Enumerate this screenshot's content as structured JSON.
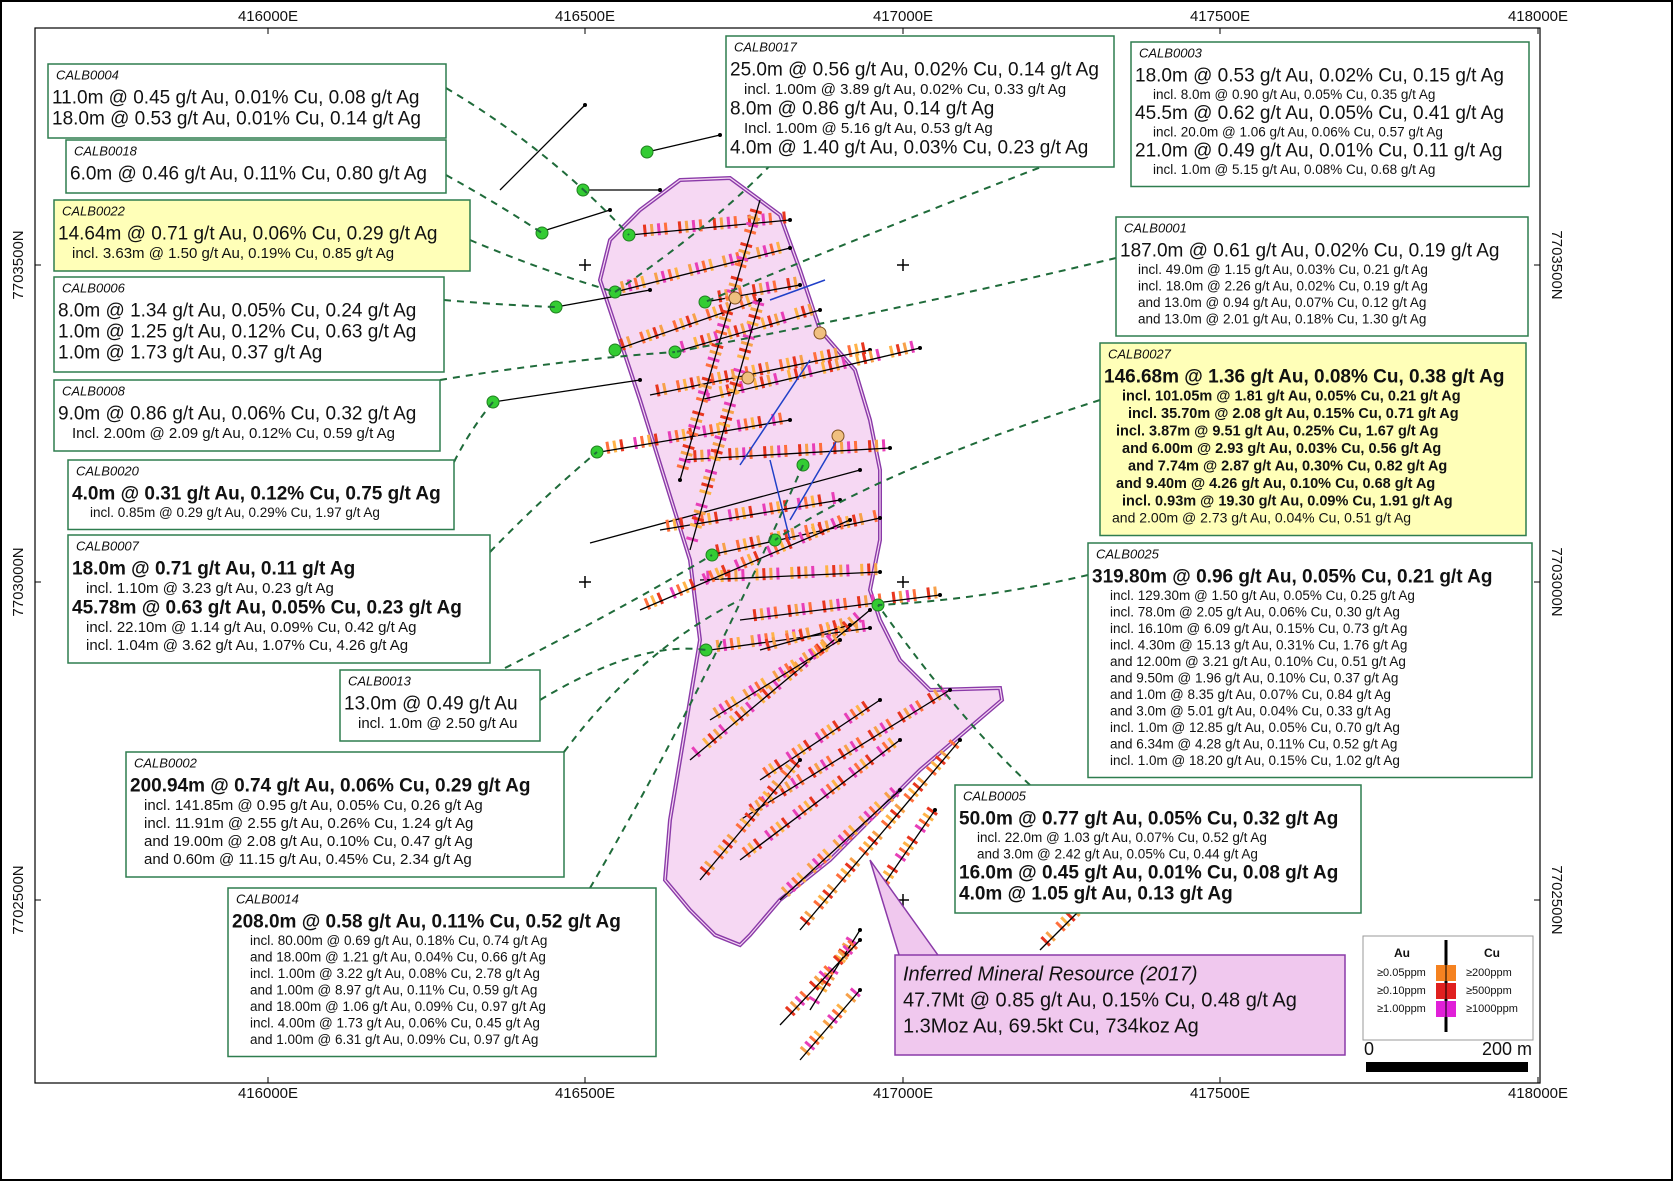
{
  "grid_labels": {
    "eastings_top": [
      "416000E",
      "416500E",
      "417000E",
      "417500E",
      "418000E"
    ],
    "eastings_bottom": [
      "416000E",
      "416500E",
      "417000E",
      "417500E",
      "418000E"
    ],
    "northings_left": [
      "7703500N",
      "7703000N",
      "7702500N"
    ],
    "northings_right": [
      "7703500N",
      "7703000N",
      "7702500N"
    ]
  },
  "callouts": [
    {
      "hole": "CALB0004",
      "lines": [
        "11.0m @ 0.45 g/t Au, 0.01% Cu, 0.08 g/t Ag",
        "18.0m @ 0.53 g/t Au, 0.01% Cu, 0.14 g/t Ag"
      ]
    },
    {
      "hole": "CALB0018",
      "lines": [
        "6.0m @ 0.46 g/t Au, 0.11% Cu, 0.80 g/t Ag"
      ]
    },
    {
      "hole": "CALB0022",
      "lines": [
        "14.64m @ 0.71 g/t Au, 0.06% Cu, 0.29 g/t Ag",
        "incl. 3.63m @ 1.50 g/t Au, 0.19% Cu, 0.85 g/t Ag"
      ]
    },
    {
      "hole": "CALB0006",
      "lines": [
        "8.0m @ 1.34 g/t Au, 0.05% Cu, 0.24 g/t Ag",
        "1.0m @ 1.25 g/t Au, 0.12% Cu, 0.63 g/t Ag",
        "1.0m @ 1.73 g/t Au, 0.37 g/t Ag"
      ]
    },
    {
      "hole": "CALB0008",
      "lines": [
        "9.0m @ 0.86 g/t Au, 0.06% Cu, 0.32 g/t Ag",
        "Incl. 2.00m @ 2.09 g/t Au, 0.12% Cu, 0.59 g/t Ag"
      ]
    },
    {
      "hole": "CALB0020",
      "lines": [
        "4.0m @ 0.31 g/t Au, 0.12% Cu, 0.75 g/t Ag",
        "incl. 0.85m @ 0.29 g/t Au, 0.29% Cu, 1.97 g/t Ag"
      ]
    },
    {
      "hole": "CALB0007",
      "lines": [
        "18.0m @ 0.71 g/t Au, 0.11 g/t Ag",
        "incl. 1.10m @ 3.23 g/t Au, 0.23 g/t Ag",
        "45.78m @ 0.63 g/t Au, 0.05% Cu, 0.23 g/t Ag",
        "incl. 22.10m @ 1.14 g/t Au, 0.09% Cu, 0.42 g/t Ag",
        "incl. 1.04m @ 3.62 g/t Au, 1.07% Cu, 4.26 g/t Ag"
      ]
    },
    {
      "hole": "CALB0013",
      "lines": [
        "13.0m @ 0.49 g/t Au",
        "incl. 1.0m @ 2.50 g/t Au"
      ]
    },
    {
      "hole": "CALB0002",
      "lines": [
        "200.94m @ 0.74 g/t Au, 0.06% Cu, 0.29 g/t Ag",
        "incl. 141.85m @ 0.95 g/t Au, 0.05% Cu, 0.26 g/t Ag",
        "incl. 11.91m @ 2.55 g/t Au, 0.26% Cu, 1.24 g/t Ag",
        "and 19.00m @ 2.08 g/t Au, 0.10% Cu, 0.47 g/t Ag",
        "and 0.60m @ 11.15 g/t Au, 0.45% Cu, 2.34 g/t Ag"
      ]
    },
    {
      "hole": "CALB0014",
      "lines": [
        "208.0m @ 0.58 g/t Au, 0.11% Cu, 0.52 g/t Ag",
        "incl. 80.00m @ 0.69 g/t Au, 0.18% Cu, 0.74 g/t Ag",
        "and 18.00m @ 1.21 g/t Au, 0.04% Cu, 0.66 g/t Ag",
        "incl. 1.00m @ 3.22 g/t Au, 0.08% Cu, 2.78 g/t Ag",
        "and 1.00m @ 8.97 g/t Au, 0.11% Cu, 0.59 g/t Ag",
        "and 18.00m @ 1.06 g/t Au, 0.09% Cu, 0.97 g/t Ag",
        "incl. 4.00m @ 1.73 g/t Au, 0.06% Cu, 0.45 g/t Ag",
        "and 1.00m @ 6.31 g/t Au, 0.09% Cu, 0.97 g/t Ag"
      ]
    },
    {
      "hole": "CALB0017",
      "lines": [
        "25.0m @ 0.56 g/t Au, 0.02% Cu, 0.14 g/t Ag",
        "incl. 1.00m @ 3.89 g/t Au, 0.02% Cu, 0.33 g/t Ag",
        "8.0m @ 0.86 g/t Au, 0.14 g/t Ag",
        "Incl. 1.00m @ 5.16 g/t Au, 0.53 g/t Ag",
        "4.0m @ 1.40 g/t Au, 0.03% Cu, 0.23 g/t Ag"
      ]
    },
    {
      "hole": "CALB0003",
      "lines": [
        "18.0m @ 0.53 g/t Au, 0.02% Cu, 0.15 g/t Ag",
        "incl. 8.0m @ 0.90 g/t Au, 0.05% Cu, 0.35 g/t Ag",
        "45.5m @ 0.62 g/t Au, 0.05% Cu, 0.41 g/t Ag",
        "incl. 20.0m @ 1.06 g/t Au, 0.06% Cu, 0.57 g/t Ag",
        "21.0m @ 0.49 g/t Au, 0.01% Cu, 0.11 g/t Ag",
        "incl. 1.0m @ 5.15 g/t Au, 0.08% Cu, 0.68 g/t Ag"
      ]
    },
    {
      "hole": "CALB0001",
      "lines": [
        "187.0m @ 0.61 g/t Au, 0.02% Cu, 0.19 g/t Ag",
        "incl. 49.0m @ 1.15 g/t Au, 0.03% Cu, 0.21 g/t Ag",
        "incl. 18.0m @ 2.26 g/t Au, 0.02% Cu, 0.19 g/t Ag",
        "and 13.0m @ 0.94 g/t Au, 0.07% Cu, 0.12 g/t Ag",
        "and 13.0m @ 2.01 g/t Au, 0.18% Cu, 1.30 g/t Ag"
      ]
    },
    {
      "hole": "CALB0027",
      "lines": [
        "146.68m @ 1.36 g/t Au, 0.08% Cu, 0.38 g/t Ag",
        "incl. 101.05m @ 1.81 g/t Au, 0.05% Cu, 0.21 g/t Ag",
        "incl. 35.70m @ 2.08 g/t Au, 0.15% Cu, 0.71 g/t Ag",
        "incl. 3.87m @ 9.51 g/t Au, 0.25% Cu, 1.67 g/t Ag",
        "and 6.00m @ 2.93 g/t Au, 0.03% Cu, 0.56 g/t Ag",
        "and 7.74m @ 2.87 g/t Au, 0.30% Cu, 0.82 g/t Ag",
        "and 9.40m @ 4.26 g/t Au, 0.10% Cu, 0.68 g/t Ag",
        "incl. 0.93m @ 19.30 g/t Au, 0.09% Cu, 1.91 g/t Ag",
        "and 2.00m @ 2.73 g/t Au, 0.04% Cu, 0.51 g/t Ag"
      ]
    },
    {
      "hole": "CALB0025",
      "lines": [
        "319.80m @ 0.96 g/t Au, 0.05% Cu, 0.21 g/t Ag",
        "incl. 129.30m @ 1.50 g/t Au, 0.05% Cu, 0.25 g/t Ag",
        "incl. 78.0m @ 2.05 g/t Au,  0.06% Cu, 0.30 g/t Ag",
        "incl. 16.10m @ 6.09 g/t Au, 0.15% Cu, 0.73 g/t Ag",
        "incl. 4.30m @ 15.13 g/t Au, 0.31% Cu, 1.76 g/t Ag",
        "and 12.00m @ 3.21 g/t Au, 0.10% Cu, 0.51 g/t Ag",
        "and 9.50m @ 1.96 g/t Au, 0.10% Cu, 0.37 g/t Ag",
        "and 1.0m @ 8.35 g/t Au, 0.07% Cu, 0.84 g/t Ag",
        "and 3.0m @ 5.01 g/t Au, 0.04% Cu, 0.33 g/t Ag",
        "incl. 1.0m @ 12.85 g/t Au, 0.05% Cu, 0.70 g/t Ag",
        "and 6.34m @ 4.28 g/t Au, 0.11% Cu, 0.52 g/t Ag",
        "incl. 1.0m @ 18.20 g/t Au, 0.15% Cu, 1.02 g/t Ag"
      ]
    },
    {
      "hole": "CALB0005",
      "lines": [
        "50.0m @ 0.77 g/t Au, 0.05% Cu, 0.32 g/t Ag",
        "incl. 22.0m @ 1.03 g/t Au, 0.07% Cu, 0.52 g/t Ag",
        "and 3.0m @ 2.42 g/t Au, 0.05% Cu, 0.44 g/t Ag",
        "16.0m @ 0.45 g/t Au, 0.01% Cu, 0.08 g/t Ag",
        "4.0m @ 1.05 g/t Au, 0.13 g/t Ag"
      ]
    }
  ],
  "resource": {
    "title": "Inferred Mineral Resource (2017)",
    "lines": [
      "47.7Mt @ 0.85 g/t Au, 0.15% Cu, 0.48 g/t Ag",
      "1.3Moz Au, 69.5kt Cu, 734koz Ag"
    ]
  },
  "legend": {
    "au": "Au",
    "cu": "Cu",
    "au_classes": [
      "≥0.05ppm",
      "≥0.10ppm",
      "≥1.00ppm"
    ],
    "cu_classes": [
      "≥200ppm",
      "≥500ppm",
      "≥1000ppm"
    ]
  },
  "scale_bar": {
    "start": "0",
    "end": "200 m"
  }
}
